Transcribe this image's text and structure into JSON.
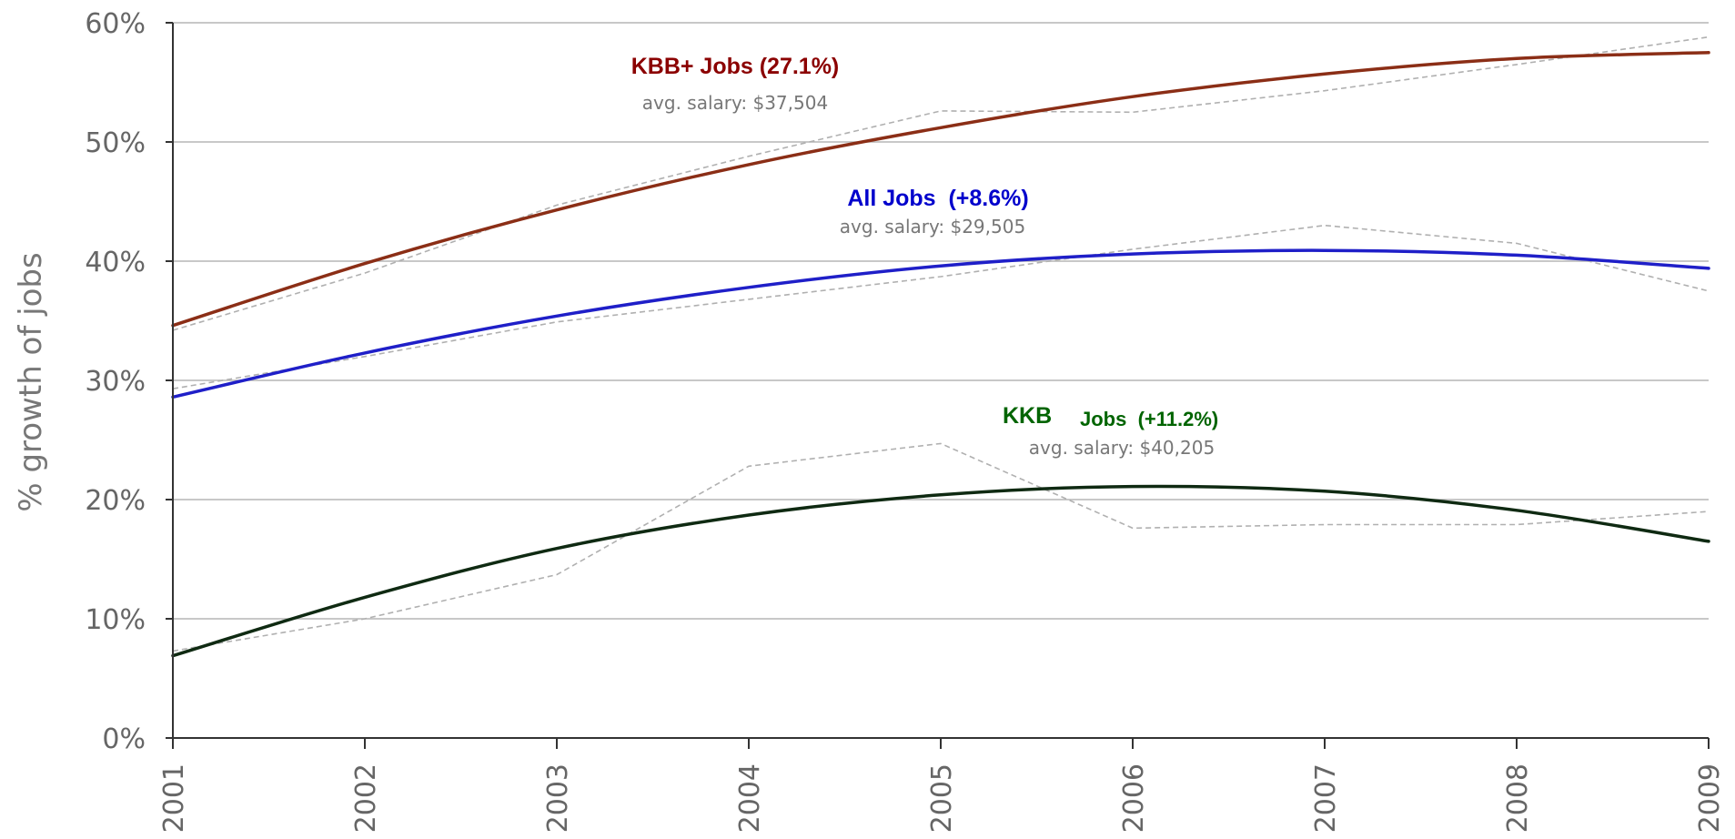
{
  "chart_data": {
    "type": "line",
    "title": "",
    "xlabel": "",
    "ylabel": "% growth of jobs",
    "x": [
      2001,
      2002,
      2003,
      2004,
      2005,
      2006,
      2007,
      2008,
      2009
    ],
    "x_tick_labels": [
      "2001",
      "2002",
      "2003",
      "2004",
      "2005",
      "2006",
      "2007",
      "2008",
      "2009"
    ],
    "ylim": [
      0,
      60
    ],
    "y_ticks": [
      0,
      10,
      20,
      30,
      40,
      50,
      60
    ],
    "y_tick_labels": [
      "0%",
      "10%",
      "20%",
      "30%",
      "40%",
      "50%",
      "60%"
    ],
    "grid": true,
    "series": [
      {
        "name": "KBB+ Jobs (27.1%)",
        "color": "#8b2e16",
        "trend": [
          34.6,
          39.8,
          44.3,
          48.1,
          51.2,
          53.8,
          55.7,
          57.0,
          57.5
        ],
        "actual": [
          34.2,
          39.0,
          44.7,
          48.8,
          52.6,
          52.5,
          54.3,
          56.5,
          58.8
        ]
      },
      {
        "name": "All Jobs (+8.6%)",
        "color": "#1f1fc8",
        "trend": [
          28.6,
          32.3,
          35.4,
          37.8,
          39.6,
          40.6,
          40.9,
          40.5,
          39.4
        ],
        "actual": [
          29.3,
          32.0,
          34.9,
          36.8,
          38.7,
          41.0,
          43.0,
          41.5,
          37.5
        ]
      },
      {
        "name": "KKB Jobs (+11.2%)",
        "color": "#0f2a12",
        "trend": [
          6.9,
          11.8,
          15.9,
          18.7,
          20.4,
          21.1,
          20.7,
          19.1,
          16.5
        ],
        "actual": [
          7.3,
          10.0,
          13.7,
          22.8,
          24.7,
          17.6,
          17.9,
          17.9,
          19.0
        ]
      }
    ],
    "annotations": [
      {
        "id": "kbb",
        "title": "KBB+ Jobs (27.1%)",
        "subtitle": "avg. salary: $37,504",
        "color": "#8b0000"
      },
      {
        "id": "all",
        "title": "All Jobs  (+8.6%)",
        "subtitle": "avg. salary: $29,505",
        "color": "#0000cc"
      },
      {
        "id": "kkb",
        "title_part1": "KKB",
        "title_part2": "Jobs  (+11.2%)",
        "subtitle": "avg. salary: $40,205",
        "color": "#006400"
      }
    ]
  }
}
